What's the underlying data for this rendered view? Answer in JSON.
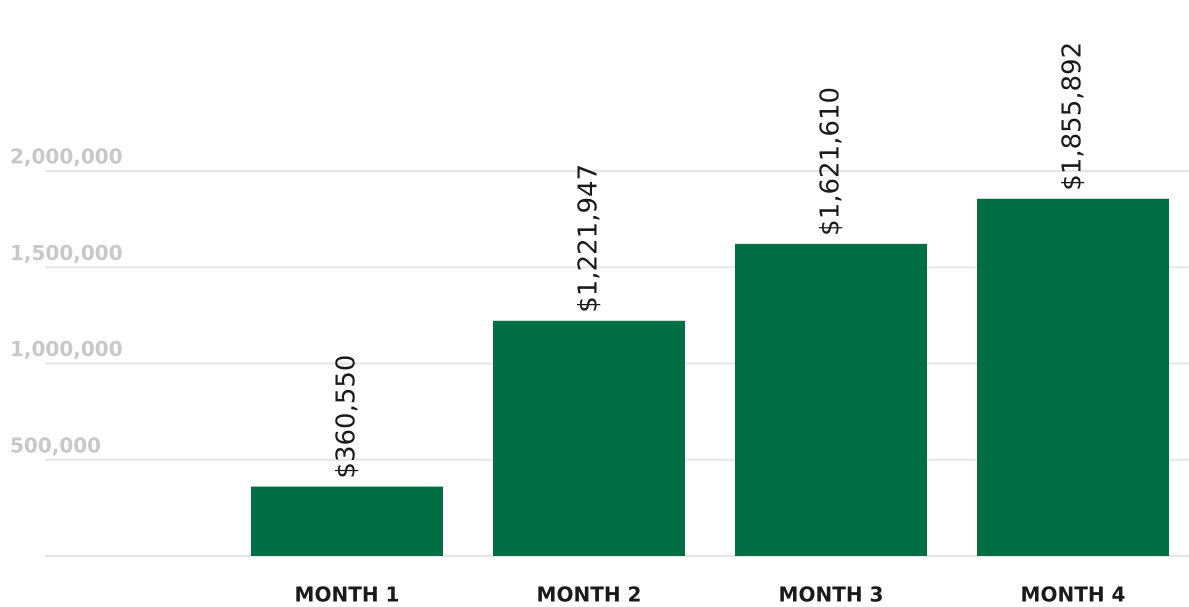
{
  "chart_data": {
    "type": "bar",
    "categories": [
      "MONTH 1",
      "MONTH 2",
      "MONTH 3",
      "MONTH 4"
    ],
    "values": [
      360550,
      1221947,
      1621610,
      1855892
    ],
    "value_labels": [
      "$360,550",
      "$1,221,947",
      "$1,621,610",
      "$1,855,892"
    ],
    "color": "#006f44",
    "ylim": [
      0,
      2000000
    ],
    "yticks": [
      {
        "value": 500000,
        "label": "500,000"
      },
      {
        "value": 1000000,
        "label": "1,000,000"
      },
      {
        "value": 1500000,
        "label": "1,500,000"
      },
      {
        "value": 2000000,
        "label": "2,000,000"
      }
    ],
    "grid": true
  }
}
